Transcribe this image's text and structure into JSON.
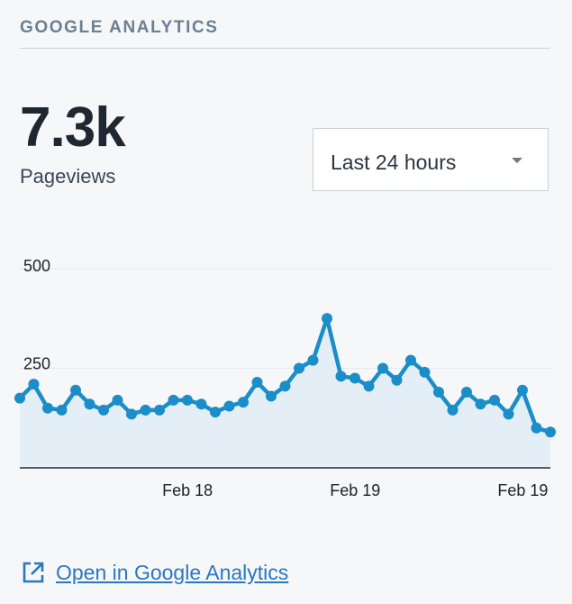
{
  "header": {
    "title": "GOOGLE ANALYTICS"
  },
  "stat": {
    "value": "7.3k",
    "label": "Pageviews"
  },
  "range_select": {
    "selected": "Last 24 hours"
  },
  "chart_data": {
    "type": "area",
    "title": "",
    "xlabel": "",
    "ylabel": "",
    "ylim": [
      0,
      500
    ],
    "yticks": [
      500,
      250
    ],
    "xtick_labels": [
      "Feb 18",
      "Feb 19",
      "Feb 19"
    ],
    "grid": true,
    "legend": "none",
    "series": [
      {
        "values": [
          175,
          210,
          150,
          145,
          195,
          160,
          145,
          170,
          135,
          145,
          145,
          170,
          170,
          160,
          140,
          155,
          165,
          215,
          180,
          205,
          250,
          270,
          375,
          230,
          225,
          205,
          250,
          220,
          270,
          240,
          190,
          145,
          190,
          160,
          170,
          135,
          195,
          100,
          90
        ]
      }
    ],
    "colors": {
      "line": "#1b8dc9",
      "fill": "#e4eef7",
      "grid": "#e3e7ec",
      "axis": "#2b2f36"
    }
  },
  "footer": {
    "link_label": "Open in Google Analytics",
    "link_icon": "external-link-icon"
  }
}
